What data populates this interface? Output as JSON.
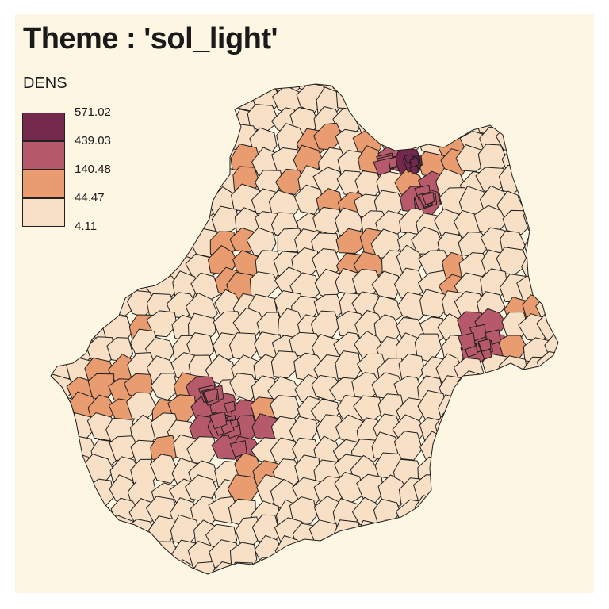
{
  "title": "Theme : 'sol_light'",
  "legend": {
    "title": "DENS",
    "breaks": [
      "571.02",
      "439.03",
      "140.48",
      "44.47",
      "4.11"
    ],
    "colors": [
      "#74284b",
      "#b65a6b",
      "#e89c6f",
      "#f7e0c6"
    ]
  },
  "colors": {
    "background": "#fdf6e3",
    "border": "#1e1e1e"
  }
}
